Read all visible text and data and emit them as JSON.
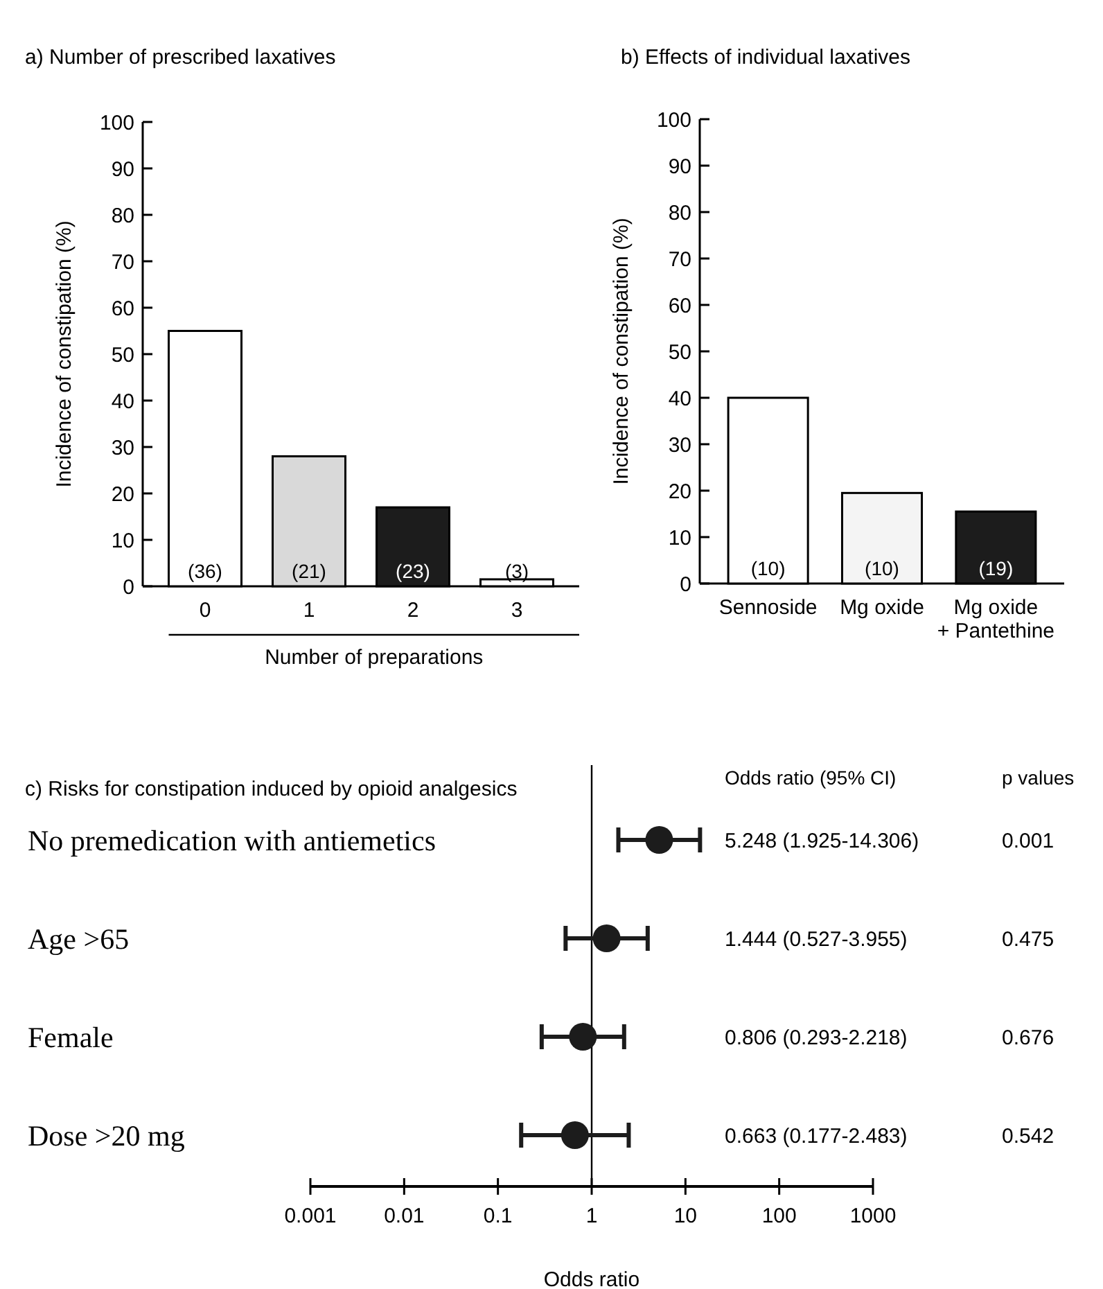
{
  "chart_data": [
    {
      "type": "bar",
      "title": "a) Number of prescribed laxatives",
      "xlabel": "Number of preparations",
      "ylabel": "Incidence of constipation (%)",
      "categories": [
        "0",
        "1",
        "2",
        "3"
      ],
      "values": [
        55,
        28,
        17,
        1.5
      ],
      "colors": [
        "#ffffff",
        "#d9d9d9",
        "#1c1c1c",
        "#ffffff"
      ],
      "ylim": [
        0,
        100
      ],
      "yticks": [
        0,
        10,
        20,
        30,
        40,
        50,
        60,
        70,
        80,
        90,
        100
      ],
      "annotations": [
        {
          "text": "(36)",
          "x": "0",
          "y": 0
        },
        {
          "text": "(21)",
          "x": "1",
          "y": 0
        },
        {
          "text": "(23)",
          "x": "2",
          "y": 0
        },
        {
          "text": "(3)",
          "x": "3",
          "y": 0
        }
      ]
    },
    {
      "type": "bar",
      "title": "b) Effects of individual laxatives",
      "ylabel": "Incidence of constipation (%)",
      "categories": [
        "Sennoside",
        "Mg oxide",
        "Mg oxide\n+ Pantethine"
      ],
      "values": [
        40,
        19.5,
        15.5
      ],
      "colors": [
        "#ffffff",
        "#f4f4f4",
        "#1c1c1c"
      ],
      "ylim": [
        0,
        100
      ],
      "yticks": [
        0,
        10,
        20,
        30,
        40,
        50,
        60,
        70,
        80,
        90,
        100
      ],
      "annotations": [
        {
          "text": "(10)",
          "x": "Sennoside",
          "y": 0
        },
        {
          "text": "(10)",
          "x": "Mg oxide",
          "y": 0
        },
        {
          "text": "(19)",
          "x": "Mg oxide\n+ Pantethine",
          "y": 0
        }
      ]
    },
    {
      "type": "scatter",
      "orientation": "horizontal",
      "title": "c) Risks for constipation induced by opioid analgesics",
      "xlabel": "Odds ratio",
      "categories": [
        "No premedication with antiemetics",
        "Age >65",
        "Female",
        "Dose >20 mg"
      ],
      "values": [
        5.248,
        1.444,
        0.806,
        0.663
      ],
      "errors": [
        [
          1.925,
          14.306
        ],
        [
          0.527,
          3.955
        ],
        [
          0.293,
          2.218
        ],
        [
          0.177,
          2.483
        ]
      ],
      "color": "#1c1c1c",
      "marker": "circle",
      "log": "x",
      "xlim": [
        0.001,
        1000
      ],
      "xticks": [
        0.001,
        0.01,
        0.1,
        1,
        10,
        100,
        1000
      ],
      "ref_lines": [
        {
          "axis": "x",
          "value": 1
        }
      ],
      "annotations": [
        "Odds ratio (95% CI)",
        "p values",
        "5.248 (1.925-14.306)",
        "0.001",
        "1.444 (0.527-3.955)",
        "0.475",
        "0.806 (0.293-2.218)",
        "0.676",
        "0.663 (0.177-2.483)",
        "0.542"
      ]
    }
  ]
}
